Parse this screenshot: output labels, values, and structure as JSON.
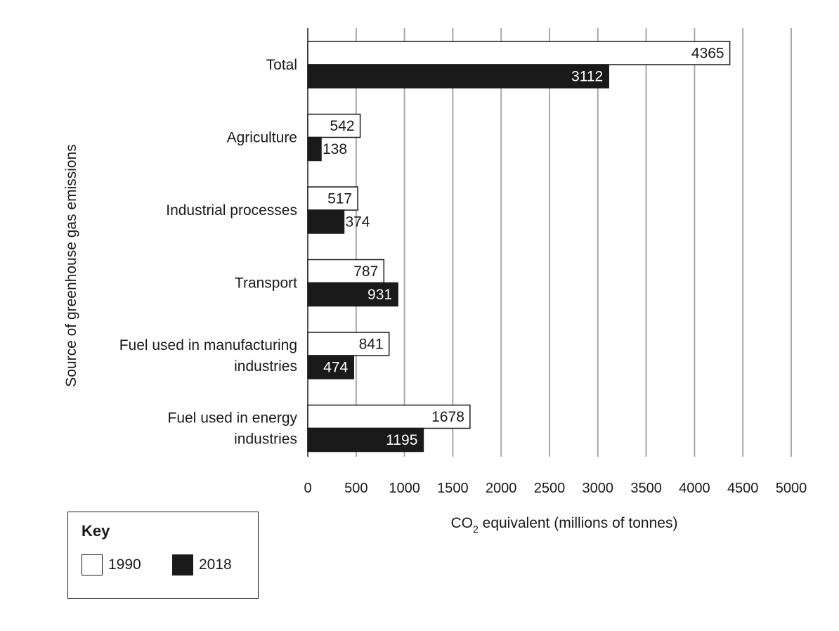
{
  "chart_data": {
    "type": "bar",
    "orientation": "horizontal",
    "title": "",
    "xlabel": "CO2 equivalent (millions of tonnes)",
    "ylabel": "Source of greenhouse gas emissions",
    "xlim": [
      0,
      5000
    ],
    "x_ticks": [
      0,
      500,
      1000,
      1500,
      2000,
      2500,
      3000,
      3500,
      4000,
      4500,
      5000
    ],
    "categories": [
      [
        "Total"
      ],
      [
        "Agriculture"
      ],
      [
        "Industrial processes"
      ],
      [
        "Transport"
      ],
      [
        "Fuel used in manufacturing",
        "industries"
      ],
      [
        "Fuel used in energy",
        "industries"
      ]
    ],
    "series": [
      {
        "name": "1990",
        "color": "#ffffff",
        "values": [
          4365,
          542,
          517,
          787,
          841,
          1678
        ]
      },
      {
        "name": "2018",
        "color": "#1a1a1a",
        "values": [
          3112,
          138,
          374,
          931,
          474,
          1195
        ]
      }
    ],
    "grid": "vertical",
    "legend_title": "Key",
    "legend_placement": "bottom-left"
  }
}
